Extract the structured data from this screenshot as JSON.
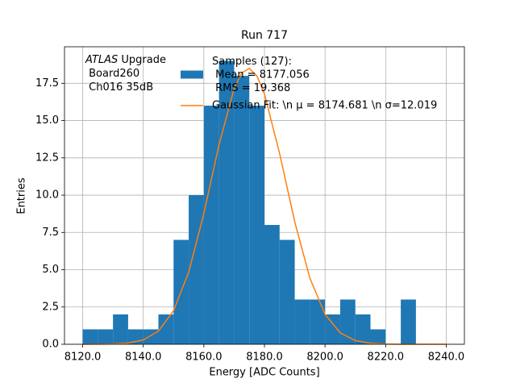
{
  "chart_data": {
    "type": "histogram",
    "title": "Run 717",
    "x_label": "Energy [ADC Counts]",
    "y_label": "Entries",
    "annotation": [
      [
        "ATLAS",
        " Upgrade"
      ],
      [
        " Board260"
      ],
      [
        " Ch016 35dB"
      ]
    ],
    "bins": [
      8120,
      8125,
      8130,
      8135,
      8140,
      8145,
      8150,
      8155,
      8160,
      8165,
      8170,
      8175,
      8180,
      8185,
      8190,
      8195,
      8200,
      8205,
      8210,
      8215,
      8220,
      8225,
      8230,
      8235
    ],
    "series": [
      {
        "name": "Samples (127):\n Mean = 8177.056\n RMS = 19.368",
        "color": "#1f77b4",
        "values": [
          1,
          1,
          2,
          1,
          1,
          2,
          7,
          10,
          16,
          19,
          18,
          16,
          8,
          7,
          3,
          3,
          2,
          3,
          2,
          1,
          0,
          3,
          0
        ]
      },
      {
        "name": "Gaussian Fit: \\n μ = 8174.681 \\n σ=12.019",
        "color": "#ff7f0e",
        "type": "line",
        "x": [
          8120,
          8125,
          8130,
          8135,
          8140,
          8145,
          8150,
          8155,
          8160,
          8165,
          8170,
          8172.5,
          8175,
          8177.5,
          8180,
          8185,
          8190,
          8195,
          8200,
          8205,
          8210,
          8215,
          8220,
          8225,
          8230,
          8235,
          8240
        ],
        "values": [
          0,
          0.004,
          0.018,
          0.08,
          0.29,
          0.88,
          2.25,
          4.84,
          8.77,
          13.38,
          17.15,
          18.2,
          18.5,
          18.0,
          16.78,
          12.8,
          8.21,
          4.43,
          2.01,
          0.77,
          0.25,
          0.07,
          0.015,
          0.003,
          0,
          0,
          0
        ]
      }
    ],
    "xlim": [
      8114,
      8246
    ],
    "ylim": [
      0,
      19.95
    ],
    "xticks": [
      {
        "value": 8120,
        "label": "8120.0"
      },
      {
        "value": 8140,
        "label": "8140.0"
      },
      {
        "value": 8160,
        "label": "8160.0"
      },
      {
        "value": 8180,
        "label": "8180.0"
      },
      {
        "value": 8200,
        "label": "8200.0"
      },
      {
        "value": 8220,
        "label": "8220.0"
      },
      {
        "value": 8240,
        "label": "8240.0"
      }
    ],
    "yticks": [
      {
        "value": 0,
        "label": "0.0"
      },
      {
        "value": 2.5,
        "label": "2.5"
      },
      {
        "value": 5,
        "label": "5.0"
      },
      {
        "value": 7.5,
        "label": "7.5"
      },
      {
        "value": 10,
        "label": "10.0"
      },
      {
        "value": 12.5,
        "label": "12.5"
      },
      {
        "value": 15,
        "label": "15.0"
      },
      {
        "value": 17.5,
        "label": "17.5"
      }
    ],
    "grid": true
  }
}
